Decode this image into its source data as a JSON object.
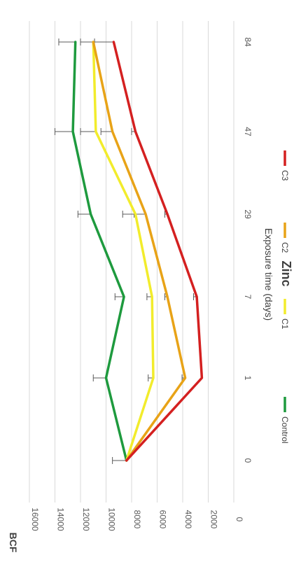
{
  "chart_data": {
    "type": "line",
    "title": "Zinc",
    "xlabel": "Exposure time (days)",
    "ylabel": "BCF",
    "categories": [
      "0",
      "1",
      "7",
      "29",
      "47",
      "84"
    ],
    "ylim": [
      0,
      16000
    ],
    "yticks": [
      0,
      2000,
      4000,
      6000,
      8000,
      10000,
      12000,
      14000,
      16000
    ],
    "grid": true,
    "legend_position": "bottom",
    "orientation": "rotated-90-clockwise",
    "series": [
      {
        "name": "Control",
        "color": "#1e9a3e",
        "values": [
          8400,
          10000,
          8600,
          11200,
          12600,
          12400
        ],
        "errors": [
          1100,
          1000,
          700,
          1000,
          1400,
          1300
        ]
      },
      {
        "name": "C1",
        "color": "#f2ec2c",
        "values": [
          8400,
          6300,
          6400,
          7700,
          10800,
          11000
        ],
        "errors": [
          0,
          400,
          400,
          1000,
          1200,
          1000
        ]
      },
      {
        "name": "C2",
        "color": "#e8a317",
        "values": [
          8400,
          3800,
          5200,
          6900,
          9500,
          11000
        ],
        "errors": [
          0,
          250,
          200,
          900,
          900,
          0
        ]
      },
      {
        "name": "C3",
        "color": "#d42020",
        "values": [
          8400,
          2500,
          2900,
          5200,
          7700,
          9400
        ],
        "errors": [
          0,
          0,
          250,
          200,
          300,
          1500
        ]
      }
    ]
  }
}
